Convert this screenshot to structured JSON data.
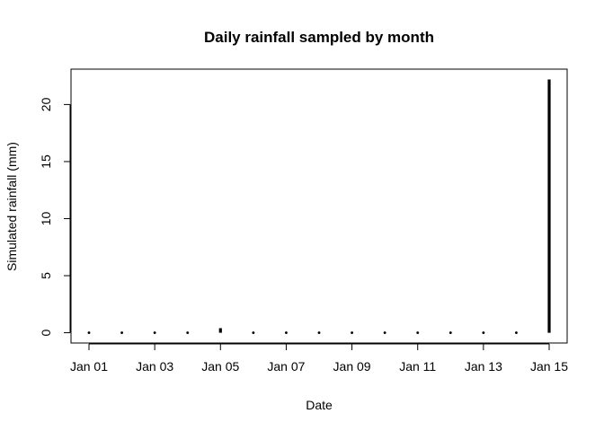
{
  "chart_data": {
    "type": "bar",
    "title": "Daily rainfall sampled by month",
    "xlabel": "Date",
    "ylabel": "Simulated rainfall (mm)",
    "x": [
      "Jan 01",
      "Jan 02",
      "Jan 03",
      "Jan 04",
      "Jan 05",
      "Jan 06",
      "Jan 07",
      "Jan 08",
      "Jan 09",
      "Jan 10",
      "Jan 11",
      "Jan 12",
      "Jan 13",
      "Jan 14",
      "Jan 15"
    ],
    "values": [
      0,
      0,
      0,
      0,
      0.4,
      0,
      0,
      0,
      0,
      0,
      0,
      0,
      0,
      0,
      22.2
    ],
    "x_tick_labels": [
      "Jan 01",
      "Jan 03",
      "Jan 05",
      "Jan 07",
      "Jan 09",
      "Jan 11",
      "Jan 13",
      "Jan 15"
    ],
    "y_ticks": [
      0,
      5,
      10,
      15,
      20
    ],
    "ylim": [
      -0.9,
      23.1
    ],
    "grid": false,
    "color": "#000000"
  }
}
